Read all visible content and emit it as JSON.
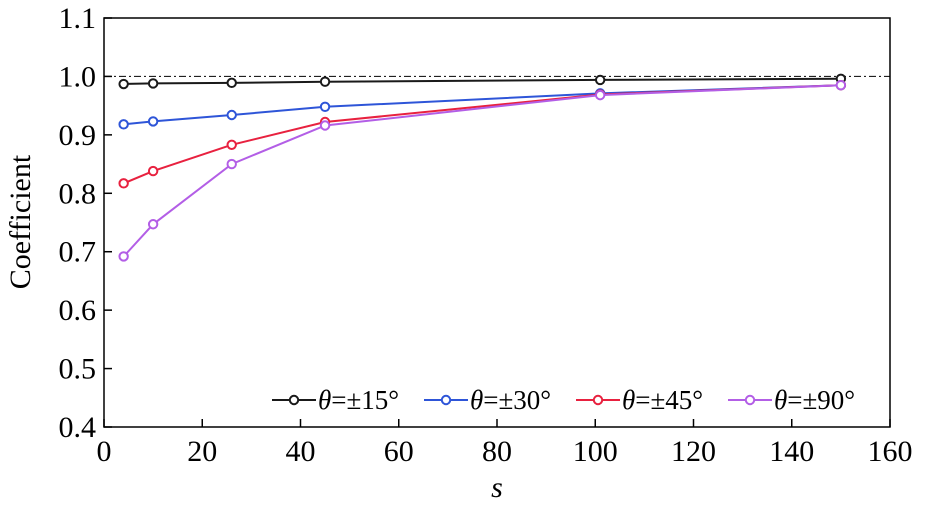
{
  "chart_data": {
    "type": "line",
    "title": "",
    "xlabel": "s",
    "ylabel": "Coefficient",
    "xlim": [
      0,
      160
    ],
    "ylim": [
      0.4,
      1.1
    ],
    "xticks": [
      0,
      20,
      40,
      60,
      80,
      100,
      120,
      140,
      160
    ],
    "yticks": [
      0.4,
      0.5,
      0.6,
      0.7,
      0.8,
      0.9,
      1.0,
      1.1
    ],
    "xtick_labels": [
      "0",
      "20",
      "40",
      "60",
      "80",
      "100",
      "120",
      "140",
      "160"
    ],
    "ytick_labels": [
      "0.4",
      "0.5",
      "0.6",
      "0.7",
      "0.8",
      "0.9",
      "1.0",
      "1.1"
    ],
    "reference_line": {
      "y": 1.0,
      "style": "dash-dot"
    },
    "grid": false,
    "legend_position": "bottom-right",
    "x": [
      4,
      10,
      26,
      45,
      101,
      150
    ],
    "series": [
      {
        "name_prefix": "θ",
        "name_suffix": "=±15°",
        "color": "#1a1a1a",
        "values": [
          0.987,
          0.988,
          0.989,
          0.991,
          0.994,
          0.996
        ]
      },
      {
        "name_prefix": "θ",
        "name_suffix": "=±30°",
        "color": "#2e55d8",
        "values": [
          0.918,
          0.923,
          0.934,
          0.948,
          0.971,
          0.985
        ]
      },
      {
        "name_prefix": "θ",
        "name_suffix": "=±45°",
        "color": "#e8213f",
        "values": [
          0.817,
          0.838,
          0.883,
          0.922,
          0.969,
          0.985
        ]
      },
      {
        "name_prefix": "θ",
        "name_suffix": "=±90°",
        "color": "#b35ee6",
        "values": [
          0.692,
          0.747,
          0.85,
          0.916,
          0.968,
          0.985
        ]
      }
    ]
  }
}
